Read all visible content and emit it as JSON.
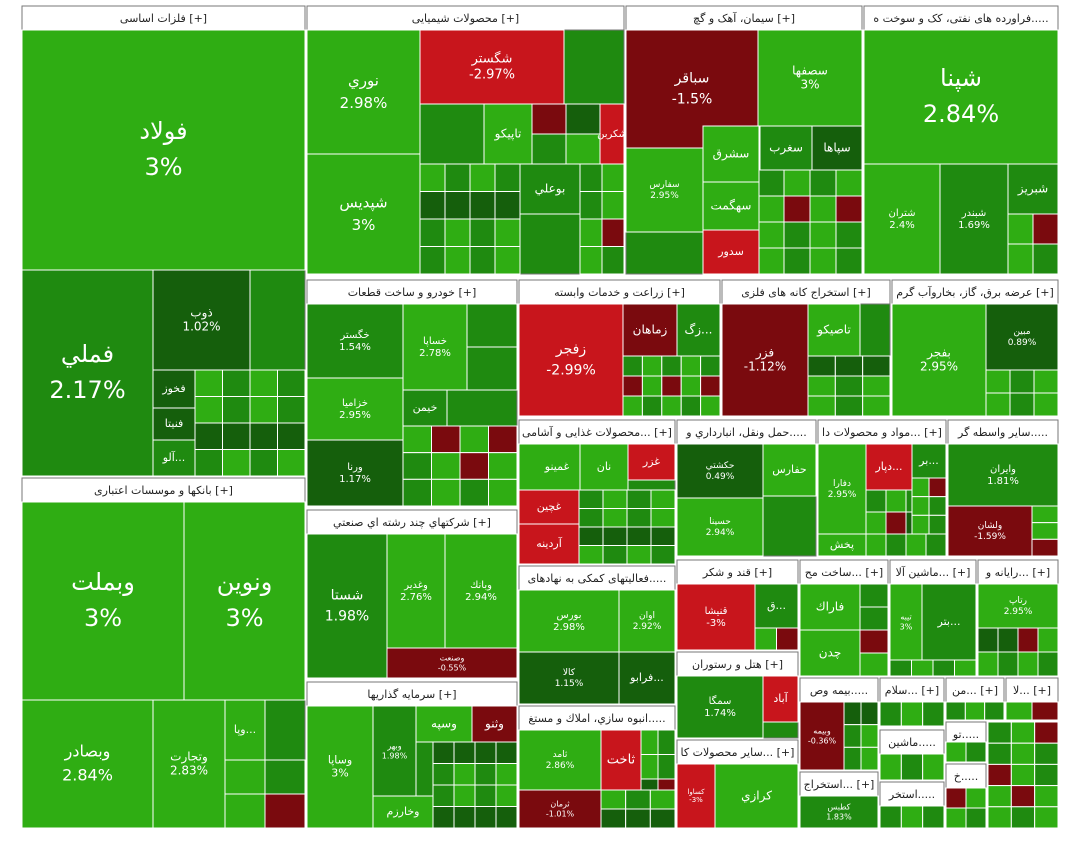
{
  "chart_data": {
    "type": "treemap",
    "title": "",
    "colors": {
      "pos_strong": "#2fad13",
      "pos_mid": "#1f8a10",
      "pos_dark": "#155f0c",
      "neutral": "#ececec",
      "neg_mid": "#c8151c",
      "neg_dark": "#7a0a0e",
      "header_bg": "#ffffff",
      "border": "#777777"
    },
    "sectors": [
      {
        "name": "فلزات اساسی",
        "expand": "[+]",
        "stocks": [
          {
            "symbol": "فولاد",
            "change": 3,
            "label": "3%"
          },
          {
            "symbol": "فملي",
            "change": 2.17,
            "label": "2.17%"
          },
          {
            "symbol": "ذوب",
            "change": 1.02,
            "label": "1.02%"
          },
          {
            "symbol": "فخوز",
            "change": 0.5,
            "label": ""
          },
          {
            "symbol": "فنيتا",
            "change": 0.3,
            "label": ""
          },
          {
            "symbol": "آلو...",
            "change": 1.4,
            "label": ""
          }
        ]
      },
      {
        "name": "محصولات شیمیایی",
        "expand": "[+]",
        "stocks": [
          {
            "symbol": "شگستر",
            "change": -2.97,
            "label": "-2.97%"
          },
          {
            "symbol": "نوري",
            "change": 2.98,
            "label": "2.98%"
          },
          {
            "symbol": "شپديس",
            "change": 3,
            "label": "3%"
          },
          {
            "symbol": "تاپيكو",
            "change": 2.5,
            "label": ""
          },
          {
            "symbol": "شكربن",
            "change": -2.4,
            "label": ""
          },
          {
            "symbol": "بوعلي",
            "change": 2.1,
            "label": ""
          }
        ]
      },
      {
        "name": "سیمان، آهک و گچ",
        "expand": "[+]",
        "stocks": [
          {
            "symbol": "سباقر",
            "change": -1.5,
            "label": "-1.5%"
          },
          {
            "symbol": "سصفها",
            "change": 3,
            "label": "3%"
          },
          {
            "symbol": "سشرق",
            "change": 2.4,
            "label": ""
          },
          {
            "symbol": "سغرب",
            "change": 2.2,
            "label": ""
          },
          {
            "symbol": "سپاها",
            "change": 0.4,
            "label": ""
          },
          {
            "symbol": "سهگمت",
            "change": 2.6,
            "label": ""
          },
          {
            "symbol": "سدور",
            "change": -2.9,
            "label": ""
          },
          {
            "symbol": "سفارس",
            "change": 2.95,
            "label": "2.95%"
          }
        ]
      },
      {
        "name": "فراورده های نفتی، کک و سوخت ه...",
        "expand": "[+]",
        "stocks": [
          {
            "symbol": "شپنا",
            "change": 2.84,
            "label": "2.84%"
          },
          {
            "symbol": "شتران",
            "change": 2.4,
            "label": "2.4%"
          },
          {
            "symbol": "شبندر",
            "change": 1.69,
            "label": "1.69%"
          },
          {
            "symbol": "شبريز",
            "change": 2.0,
            "label": ""
          }
        ]
      },
      {
        "name": "بانکها و موسسات اعتباری",
        "expand": "[+]",
        "stocks": [
          {
            "symbol": "وبملت",
            "change": 3,
            "label": "3%"
          },
          {
            "symbol": "ونوين",
            "change": 3,
            "label": "3%"
          },
          {
            "symbol": "وبصادر",
            "change": 2.84,
            "label": "2.84%"
          },
          {
            "symbol": "وتجارت",
            "change": 2.83,
            "label": "2.83%"
          },
          {
            "symbol": "وپا...",
            "change": 2.5,
            "label": ""
          }
        ]
      },
      {
        "name": "خودرو و ساخت قطعات",
        "expand": "[+]",
        "stocks": [
          {
            "symbol": "خگستر",
            "change": 1.54,
            "label": "1.54%"
          },
          {
            "symbol": "خساپا",
            "change": 2.78,
            "label": "2.78%"
          },
          {
            "symbol": "خزاميا",
            "change": 2.95,
            "label": "2.95%"
          },
          {
            "symbol": "ورنا",
            "change": 1.17,
            "label": "1.17%"
          },
          {
            "symbol": "خيمن",
            "change": 2.2,
            "label": ""
          }
        ]
      },
      {
        "name": "زراعت و خدمات وابسته",
        "expand": "[+]",
        "stocks": [
          {
            "symbol": "زفجر",
            "change": -2.99,
            "label": "-2.99%"
          },
          {
            "symbol": "زماهان",
            "change": -1.6,
            "label": ""
          },
          {
            "symbol": "زگ...",
            "change": 2.2,
            "label": ""
          }
        ]
      },
      {
        "name": "استخراج کانه های فلزی",
        "expand": "[+]",
        "stocks": [
          {
            "symbol": "فزر",
            "change": -1.12,
            "label": "-1.12%"
          },
          {
            "symbol": "تاصيكو",
            "change": 2.6,
            "label": ""
          }
        ]
      },
      {
        "name": "عرضه برق، گاز، بخاروآب گرم",
        "expand": "[+]",
        "stocks": [
          {
            "symbol": "بفجر",
            "change": 2.95,
            "label": "2.95%"
          },
          {
            "symbol": "مبين",
            "change": 0.89,
            "label": "0.89%"
          }
        ]
      },
      {
        "name": "شرکتهاي چند رشته اي صنعتي",
        "expand": "[+]",
        "stocks": [
          {
            "symbol": "شستا",
            "change": 1.98,
            "label": "1.98%"
          },
          {
            "symbol": "وغدير",
            "change": 2.76,
            "label": "2.76%"
          },
          {
            "symbol": "وبانك",
            "change": 2.94,
            "label": "2.94%"
          },
          {
            "symbol": "وصنعت",
            "change": -0.55,
            "label": "-0.55%"
          }
        ]
      },
      {
        "name": "سرمايه گذاريها",
        "expand": "[+]",
        "stocks": [
          {
            "symbol": "وساپا",
            "change": 3,
            "label": "3%"
          },
          {
            "symbol": "وسپه",
            "change": 2.6,
            "label": ""
          },
          {
            "symbol": "وبهر",
            "change": 1.98,
            "label": "1.98%"
          },
          {
            "symbol": "وثنو",
            "change": -1.3,
            "label": ""
          },
          {
            "symbol": "وخارزم",
            "change": 2.3,
            "label": ""
          }
        ]
      },
      {
        "name": "محصولات غذایی و آشامی...",
        "expand": "[+]",
        "stocks": [
          {
            "symbol": "غمينو",
            "change": 2.5,
            "label": ""
          },
          {
            "symbol": "نان",
            "change": 2.3,
            "label": ""
          },
          {
            "symbol": "غزر",
            "change": -2.1,
            "label": ""
          },
          {
            "symbol": "غچين",
            "change": -2.5,
            "label": ""
          },
          {
            "symbol": "آردينه",
            "change": -2.3,
            "label": ""
          }
        ]
      },
      {
        "name": "حمل ونقل، انبارداري و...",
        "expand": "[+]",
        "stocks": [
          {
            "symbol": "حفارس",
            "change": 2.4,
            "label": ""
          },
          {
            "symbol": "حكشتي",
            "change": 0.49,
            "label": "0.49%"
          },
          {
            "symbol": "حسينا",
            "change": 2.94,
            "label": "2.94%"
          }
        ]
      },
      {
        "name": "مواد و محصولات دا...",
        "expand": "[+]",
        "stocks": [
          {
            "symbol": "دفارا",
            "change": 2.95,
            "label": "2.95%"
          },
          {
            "symbol": "دپار...",
            "change": -2.0,
            "label": ""
          },
          {
            "symbol": "بر...",
            "change": 2.2,
            "label": ""
          },
          {
            "symbol": "پخش",
            "change": 2.6,
            "label": ""
          }
        ]
      },
      {
        "name": "سایر واسطه گر...",
        "expand": "[+]",
        "stocks": [
          {
            "symbol": "وايران",
            "change": 1.81,
            "label": "1.81%"
          },
          {
            "symbol": "ولشان",
            "change": -1.59,
            "label": "-1.59%"
          }
        ]
      },
      {
        "name": "فعالیتهای کمکی به نهادهای...",
        "expand": "[+]",
        "stocks": [
          {
            "symbol": "بورس",
            "change": 2.98,
            "label": "2.98%"
          },
          {
            "symbol": "اوان",
            "change": 2.92,
            "label": "2.92%"
          },
          {
            "symbol": "كالا",
            "change": 1.15,
            "label": "1.15%"
          },
          {
            "symbol": "فرابو...",
            "change": 1.0,
            "label": ""
          }
        ]
      },
      {
        "name": "قند و شکر",
        "expand": "[+]",
        "stocks": [
          {
            "symbol": "قنيشا",
            "change": -3,
            "label": "-3%"
          },
          {
            "symbol": "ق...",
            "change": 2.0,
            "label": ""
          }
        ]
      },
      {
        "name": "ساخت مح...",
        "expand": "[+]",
        "stocks": [
          {
            "symbol": "فاراك",
            "change": 2.4,
            "label": ""
          },
          {
            "symbol": "چدن",
            "change": 2.3,
            "label": ""
          }
        ]
      },
      {
        "name": "ماشین آلا...",
        "expand": "[+]",
        "stocks": [
          {
            "symbol": "بتر...",
            "change": 2.2,
            "label": ""
          },
          {
            "symbol": "تيبه",
            "change": 3,
            "label": "3%"
          }
        ]
      },
      {
        "name": "رایانه و...",
        "expand": "[+]",
        "stocks": [
          {
            "symbol": "رتاپ",
            "change": 2.95,
            "label": "2.95%"
          }
        ]
      },
      {
        "name": "انبوه سازي، املاك و مستغ...",
        "expand": "[+]",
        "stocks": [
          {
            "symbol": "ثامد",
            "change": 2.86,
            "label": "2.86%"
          },
          {
            "symbol": "ثاخت",
            "change": -2.0,
            "label": ""
          },
          {
            "symbol": "ثرمان",
            "change": -1.01,
            "label": "-1.01%"
          }
        ]
      },
      {
        "name": "هتل و رستوران",
        "expand": "[+]",
        "stocks": [
          {
            "symbol": "سمگا",
            "change": 1.74,
            "label": "1.74%"
          },
          {
            "symbol": "آباد",
            "change": -2.4,
            "label": ""
          }
        ]
      },
      {
        "name": "سایر محصولات کا...",
        "expand": "[+]",
        "stocks": [
          {
            "symbol": "كرازي",
            "change": 2.5,
            "label": ""
          },
          {
            "symbol": "كساوا",
            "change": -3,
            "label": "-3%"
          }
        ]
      },
      {
        "name": "بيمه وص...",
        "expand": "[+]",
        "stocks": [
          {
            "symbol": "وبيمه",
            "change": -0.36,
            "label": "-0.36%"
          }
        ]
      },
      {
        "name": "سلام...",
        "expand": "[+]",
        "stocks": []
      },
      {
        "name": "من...",
        "expand": "[+]",
        "stocks": []
      },
      {
        "name": "لا...",
        "expand": "[+]",
        "stocks": []
      },
      {
        "name": "ماشين...",
        "expand": "[+]",
        "stocks": []
      },
      {
        "name": "تو...",
        "expand": "[+]",
        "stocks": []
      },
      {
        "name": "استخراج...",
        "expand": "[+]",
        "stocks": [
          {
            "symbol": "كطبس",
            "change": 1.83,
            "label": "1.83%"
          }
        ]
      },
      {
        "name": "استخر...",
        "expand": "[+]",
        "stocks": []
      },
      {
        "name": "خ...",
        "expand": "[+]",
        "stocks": []
      }
    ]
  }
}
